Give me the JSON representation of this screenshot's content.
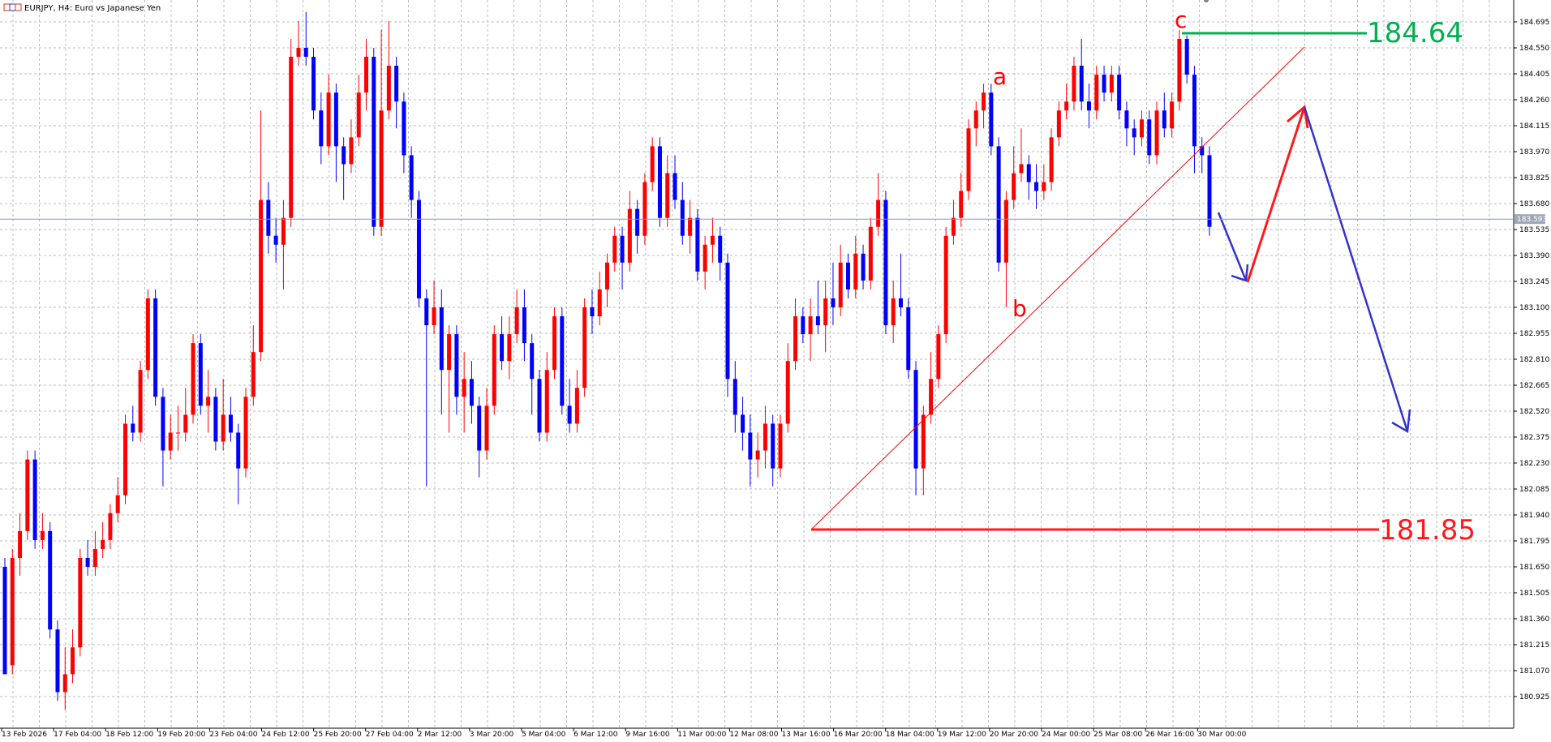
{
  "window": {
    "title": "EURJPY, H4:  Euro vs Japanese Yen",
    "icon": "chart-window-icon"
  },
  "chart_data": {
    "type": "candlestick",
    "symbol": "EURJPY",
    "timeframe": "H4",
    "ylim": [
      180.83,
      184.83
    ],
    "grid": true,
    "colors": {
      "bull": "#ff0000",
      "bear": "#0000ff",
      "grid": "#b8bcc4",
      "axis": "#000000"
    },
    "y_ticks": [
      "184.695",
      "184.550",
      "184.405",
      "184.260",
      "184.115",
      "183.970",
      "183.825",
      "183.680",
      "183.535",
      "183.390",
      "183.245",
      "183.100",
      "182.955",
      "182.810",
      "182.665",
      "182.520",
      "182.375",
      "182.230",
      "182.085",
      "181.940",
      "181.795",
      "181.650",
      "181.505",
      "181.360",
      "181.215",
      "181.070",
      "180.925"
    ],
    "x_ticks": [
      "13 Feb 2026",
      "17 Feb 04:00",
      "18 Feb 12:00",
      "19 Feb 20:00",
      "23 Feb 04:00",
      "24 Feb 12:00",
      "25 Feb 20:00",
      "27 Feb 04:00",
      "2 Mar 12:00",
      "3 Mar 20:00",
      "5 Mar 04:00",
      "6 Mar 12:00",
      "9 Mar 16:00",
      "11 Mar 00:00",
      "12 Mar 08:00",
      "13 Mar 16:00",
      "16 Mar 20:00",
      "18 Mar 04:00",
      "19 Mar 12:00",
      "20 Mar 20:00",
      "24 Mar 00:00",
      "25 Mar 08:00",
      "26 Mar 16:00",
      "30 Mar 00:00"
    ],
    "current_price": "183.593",
    "candles": [
      [
        181.65,
        181.05,
        181.7,
        181.1
      ],
      [
        181.1,
        181.7,
        181.75,
        181.05
      ],
      [
        181.7,
        181.85,
        181.95,
        181.6
      ],
      [
        181.85,
        182.25,
        182.3,
        181.8
      ],
      [
        182.25,
        181.8,
        182.3,
        181.75
      ],
      [
        181.8,
        181.85,
        181.95,
        181.75
      ],
      [
        181.85,
        181.3,
        181.9,
        181.25
      ],
      [
        181.3,
        180.95,
        181.35,
        180.9
      ],
      [
        180.95,
        181.05,
        181.2,
        180.85
      ],
      [
        181.05,
        181.2,
        181.3,
        181.0
      ],
      [
        181.2,
        181.7,
        181.75,
        181.15
      ],
      [
        181.7,
        181.65,
        181.8,
        181.6
      ],
      [
        181.65,
        181.75,
        181.85,
        181.6
      ],
      [
        181.75,
        181.8,
        181.9,
        181.7
      ],
      [
        181.8,
        181.95,
        182.0,
        181.75
      ],
      [
        181.95,
        182.05,
        182.15,
        181.9
      ],
      [
        182.05,
        182.45,
        182.5,
        182.0
      ],
      [
        182.45,
        182.4,
        182.55,
        182.35
      ],
      [
        182.4,
        182.75,
        182.8,
        182.35
      ],
      [
        182.75,
        183.15,
        183.2,
        182.7
      ],
      [
        183.15,
        182.6,
        183.2,
        182.55
      ],
      [
        182.6,
        182.3,
        182.65,
        182.1
      ],
      [
        182.3,
        182.4,
        182.5,
        182.25
      ],
      [
        182.4,
        182.4,
        182.55,
        182.3
      ],
      [
        182.4,
        182.5,
        182.65,
        182.35
      ],
      [
        182.5,
        182.9,
        182.95,
        182.45
      ],
      [
        182.9,
        182.55,
        182.95,
        182.5
      ],
      [
        182.55,
        182.6,
        182.75,
        182.4
      ],
      [
        182.6,
        182.35,
        182.65,
        182.3
      ],
      [
        182.35,
        182.5,
        182.7,
        182.3
      ],
      [
        182.5,
        182.4,
        182.6,
        182.35
      ],
      [
        182.4,
        182.2,
        182.45,
        182.0
      ],
      [
        182.2,
        182.6,
        182.65,
        182.15
      ],
      [
        182.6,
        182.85,
        183.0,
        182.55
      ],
      [
        182.85,
        183.7,
        184.2,
        182.8
      ],
      [
        183.7,
        183.5,
        183.8,
        183.4
      ],
      [
        183.5,
        183.45,
        183.6,
        183.35
      ],
      [
        183.45,
        183.6,
        183.7,
        183.2
      ],
      [
        183.6,
        184.5,
        184.6,
        183.55
      ],
      [
        184.5,
        184.55,
        184.7,
        184.45
      ],
      [
        184.55,
        184.5,
        184.75,
        184.45
      ],
      [
        184.5,
        184.2,
        184.55,
        184.15
      ],
      [
        184.2,
        184.0,
        184.3,
        183.9
      ],
      [
        184.0,
        184.3,
        184.4,
        183.95
      ],
      [
        184.3,
        184.0,
        184.35,
        183.8
      ],
      [
        184.0,
        183.9,
        184.05,
        183.7
      ],
      [
        183.9,
        184.05,
        184.15,
        183.85
      ],
      [
        184.05,
        184.3,
        184.4,
        184.0
      ],
      [
        184.3,
        184.5,
        184.6,
        184.2
      ],
      [
        184.5,
        183.55,
        184.55,
        183.5
      ],
      [
        183.55,
        184.2,
        184.65,
        183.5
      ],
      [
        184.2,
        184.45,
        184.7,
        184.15
      ],
      [
        184.45,
        184.25,
        184.5,
        184.1
      ],
      [
        184.25,
        183.95,
        184.3,
        183.85
      ],
      [
        183.95,
        183.7,
        184.0,
        183.6
      ],
      [
        183.7,
        183.15,
        183.75,
        183.1
      ],
      [
        183.15,
        183.0,
        183.2,
        182.1
      ],
      [
        183.0,
        183.1,
        183.25,
        182.95
      ],
      [
        183.1,
        182.75,
        183.2,
        182.5
      ],
      [
        182.75,
        182.95,
        183.0,
        182.4
      ],
      [
        182.95,
        182.6,
        183.0,
        182.5
      ],
      [
        182.6,
        182.7,
        182.85,
        182.4
      ],
      [
        182.7,
        182.55,
        182.8,
        182.45
      ],
      [
        182.55,
        182.3,
        182.6,
        182.15
      ],
      [
        182.3,
        182.55,
        182.65,
        182.25
      ],
      [
        182.55,
        182.95,
        183.0,
        182.5
      ],
      [
        182.95,
        182.8,
        183.05,
        182.75
      ],
      [
        182.8,
        182.95,
        183.05,
        182.7
      ],
      [
        182.95,
        183.1,
        183.2,
        182.9
      ],
      [
        183.1,
        182.9,
        183.2,
        182.8
      ],
      [
        182.9,
        182.7,
        182.95,
        182.5
      ],
      [
        182.7,
        182.4,
        182.75,
        182.35
      ],
      [
        182.4,
        182.75,
        182.85,
        182.35
      ],
      [
        182.75,
        183.05,
        183.1,
        182.7
      ],
      [
        183.05,
        182.55,
        183.1,
        182.5
      ],
      [
        182.55,
        182.45,
        182.7,
        182.4
      ],
      [
        182.45,
        182.65,
        182.75,
        182.4
      ],
      [
        182.65,
        183.1,
        183.15,
        182.6
      ],
      [
        183.1,
        183.05,
        183.2,
        182.95
      ],
      [
        183.05,
        183.2,
        183.3,
        183.0
      ],
      [
        183.2,
        183.35,
        183.4,
        183.1
      ],
      [
        183.35,
        183.5,
        183.55,
        183.3
      ],
      [
        183.5,
        183.35,
        183.55,
        183.2
      ],
      [
        183.35,
        183.65,
        183.75,
        183.3
      ],
      [
        183.65,
        183.5,
        183.7,
        183.4
      ],
      [
        183.5,
        183.8,
        183.85,
        183.45
      ],
      [
        183.8,
        184.0,
        184.05,
        183.75
      ],
      [
        184.0,
        183.6,
        184.05,
        183.55
      ],
      [
        183.6,
        183.85,
        183.95,
        183.55
      ],
      [
        183.85,
        183.7,
        183.95,
        183.65
      ],
      [
        183.7,
        183.5,
        183.8,
        183.45
      ],
      [
        183.5,
        183.6,
        183.7,
        183.4
      ],
      [
        183.6,
        183.3,
        183.65,
        183.25
      ],
      [
        183.3,
        183.45,
        183.5,
        183.2
      ],
      [
        183.45,
        183.5,
        183.6,
        183.35
      ],
      [
        183.5,
        183.35,
        183.55,
        183.25
      ],
      [
        183.35,
        182.7,
        183.4,
        182.6
      ],
      [
        182.7,
        182.5,
        182.8,
        182.4
      ],
      [
        182.5,
        182.4,
        182.6,
        182.3
      ],
      [
        182.4,
        182.25,
        182.5,
        182.1
      ],
      [
        182.25,
        182.3,
        182.4,
        182.15
      ],
      [
        182.3,
        182.45,
        182.55,
        182.2
      ],
      [
        182.45,
        182.2,
        182.5,
        182.1
      ],
      [
        182.2,
        182.45,
        182.5,
        182.15
      ],
      [
        182.45,
        182.8,
        182.9,
        182.4
      ],
      [
        182.8,
        183.05,
        183.15,
        182.75
      ],
      [
        183.05,
        182.95,
        183.1,
        182.9
      ],
      [
        182.95,
        183.05,
        183.15,
        182.8
      ],
      [
        183.05,
        183.0,
        183.25,
        182.95
      ],
      [
        183.0,
        183.15,
        183.25,
        182.85
      ],
      [
        183.15,
        183.1,
        183.35,
        183.0
      ],
      [
        183.1,
        183.35,
        183.45,
        183.05
      ],
      [
        183.35,
        183.2,
        183.4,
        183.15
      ],
      [
        183.2,
        183.4,
        183.5,
        183.15
      ],
      [
        183.4,
        183.25,
        183.45,
        183.2
      ],
      [
        183.25,
        183.55,
        183.6,
        183.2
      ],
      [
        183.55,
        183.7,
        183.85,
        183.5
      ],
      [
        183.7,
        183.0,
        183.75,
        182.95
      ],
      [
        183.0,
        183.15,
        183.25,
        182.9
      ],
      [
        183.15,
        183.1,
        183.4,
        183.05
      ],
      [
        183.1,
        182.75,
        183.15,
        182.7
      ],
      [
        182.75,
        182.2,
        182.8,
        182.05
      ],
      [
        182.2,
        182.5,
        182.55,
        182.05
      ],
      [
        182.5,
        182.7,
        182.85,
        182.45
      ],
      [
        182.7,
        182.95,
        183.0,
        182.65
      ],
      [
        182.95,
        183.5,
        183.55,
        182.9
      ],
      [
        183.5,
        183.6,
        183.7,
        183.45
      ],
      [
        183.6,
        183.75,
        183.85,
        183.55
      ],
      [
        183.75,
        184.1,
        184.15,
        183.7
      ],
      [
        184.1,
        184.2,
        184.25,
        184.0
      ],
      [
        184.2,
        184.3,
        184.35,
        184.1
      ],
      [
        184.3,
        184.0,
        184.35,
        183.95
      ],
      [
        184.0,
        183.35,
        184.05,
        183.3
      ],
      [
        183.35,
        183.7,
        183.75,
        183.1
      ],
      [
        183.7,
        183.85,
        184.0,
        183.65
      ],
      [
        183.85,
        183.9,
        184.1,
        183.8
      ],
      [
        183.9,
        183.8,
        183.95,
        183.7
      ],
      [
        183.8,
        183.75,
        183.9,
        183.65
      ],
      [
        183.75,
        183.8,
        183.9,
        183.7
      ],
      [
        183.8,
        184.05,
        184.1,
        183.75
      ],
      [
        184.05,
        184.2,
        184.25,
        184.0
      ],
      [
        184.2,
        184.25,
        184.35,
        184.15
      ],
      [
        184.25,
        184.45,
        184.5,
        184.2
      ],
      [
        184.45,
        184.25,
        184.6,
        184.2
      ],
      [
        184.25,
        184.2,
        184.35,
        184.1
      ],
      [
        184.2,
        184.4,
        184.45,
        184.15
      ],
      [
        184.4,
        184.3,
        184.45,
        184.25
      ],
      [
        184.3,
        184.4,
        184.45,
        184.25
      ],
      [
        184.4,
        184.2,
        184.45,
        184.15
      ],
      [
        184.2,
        184.1,
        184.25,
        184.0
      ],
      [
        184.1,
        184.05,
        184.15,
        183.95
      ],
      [
        184.05,
        184.15,
        184.2,
        184.0
      ],
      [
        184.15,
        183.95,
        184.2,
        183.9
      ],
      [
        183.95,
        184.2,
        184.25,
        183.9
      ],
      [
        184.2,
        184.1,
        184.3,
        184.05
      ],
      [
        184.1,
        184.25,
        184.3,
        184.05
      ],
      [
        184.25,
        184.6,
        184.65,
        184.2
      ],
      [
        184.6,
        184.4,
        184.62,
        184.35
      ],
      [
        184.4,
        184.0,
        184.45,
        183.85
      ],
      [
        184.0,
        183.95,
        184.05,
        183.85
      ],
      [
        183.95,
        183.55,
        184.0,
        183.5
      ]
    ]
  },
  "annotations": {
    "wave_labels": [
      {
        "text": "a",
        "color": "#ff0000"
      },
      {
        "text": "b",
        "color": "#ff0000"
      },
      {
        "text": "c",
        "color": "#ff0000"
      }
    ],
    "resistance_label": "184.64",
    "resistance_color": "#00b050",
    "support_label": "181.85",
    "support_color": "#ff0000",
    "projection_colors": {
      "down": "#3333cc",
      "up": "#ff1a1a",
      "trend": "#ff0000"
    }
  }
}
